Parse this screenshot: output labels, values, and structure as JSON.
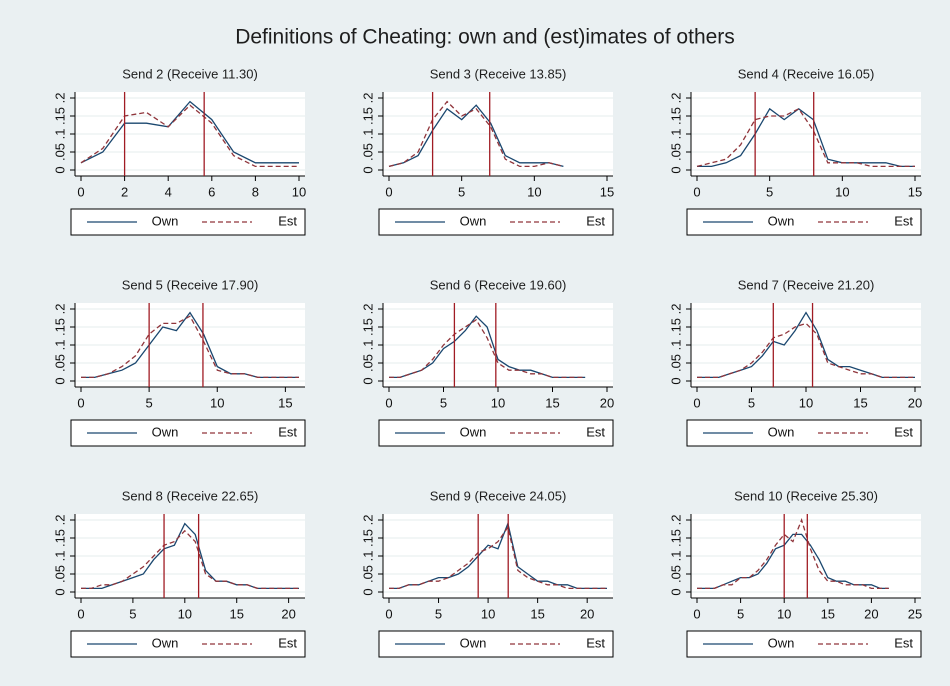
{
  "title": "Definitions of Cheating: own and (est)imates of others",
  "chart_data": [
    {
      "type": "line",
      "title": "Send 2 (Receive 11.30)",
      "x": [
        0,
        1,
        2,
        3,
        4,
        5,
        6,
        7,
        8,
        9,
        10
      ],
      "xlim": [
        0,
        10
      ],
      "xticks": [
        0,
        2,
        4,
        6,
        8,
        10
      ],
      "ylim": [
        0,
        0.2
      ],
      "yticks": [
        0,
        {
          "value": 0.05,
          "label": ".05"
        },
        {
          "value": 0.1,
          "label": ".1"
        },
        {
          "value": 0.15,
          "label": ".15"
        },
        {
          "value": 0.2,
          "label": ".2"
        }
      ],
      "grid": true,
      "vlines": [
        2,
        5.65
      ],
      "vline_color": "#a01c24",
      "series": [
        {
          "name": "Own",
          "color": "#1a476f",
          "dash": false,
          "values": [
            0.02,
            0.05,
            0.13,
            0.13,
            0.12,
            0.19,
            0.14,
            0.05,
            0.02,
            0.02,
            0.02
          ]
        },
        {
          "name": "Est",
          "color": "#90353b",
          "dash": true,
          "values": [
            0.02,
            0.06,
            0.15,
            0.16,
            0.12,
            0.18,
            0.13,
            0.04,
            0.01,
            0.01,
            0.01
          ]
        }
      ]
    },
    {
      "type": "line",
      "title": "Send 3 (Receive 13.85)",
      "x": [
        0,
        1,
        2,
        3,
        4,
        5,
        6,
        7,
        8,
        9,
        10,
        11,
        12
      ],
      "xlim": [
        0,
        15
      ],
      "xticks": [
        0,
        5,
        10,
        15
      ],
      "ylim": [
        0,
        0.2
      ],
      "yticks": [
        0,
        {
          "value": 0.05,
          "label": ".05"
        },
        {
          "value": 0.1,
          "label": ".1"
        },
        {
          "value": 0.15,
          "label": ".15"
        },
        {
          "value": 0.2,
          "label": ".2"
        }
      ],
      "grid": true,
      "vlines": [
        3,
        6.93
      ],
      "vline_color": "#a01c24",
      "series": [
        {
          "name": "Own",
          "color": "#1a476f",
          "dash": false,
          "values": [
            0.01,
            0.02,
            0.04,
            0.11,
            0.17,
            0.14,
            0.18,
            0.13,
            0.04,
            0.02,
            0.02,
            0.02,
            0.01
          ]
        },
        {
          "name": "Est",
          "color": "#90353b",
          "dash": true,
          "values": [
            0.01,
            0.02,
            0.05,
            0.14,
            0.19,
            0.15,
            0.17,
            0.12,
            0.03,
            0.01,
            0.01,
            0.02,
            0.01
          ]
        }
      ]
    },
    {
      "type": "line",
      "title": "Send 4 (Receive 16.05)",
      "x": [
        0,
        1,
        2,
        3,
        4,
        5,
        6,
        7,
        8,
        9,
        10,
        11,
        12,
        13,
        14,
        15
      ],
      "xlim": [
        0,
        15
      ],
      "xticks": [
        0,
        5,
        10,
        15
      ],
      "ylim": [
        0,
        0.2
      ],
      "yticks": [
        0,
        {
          "value": 0.05,
          "label": ".05"
        },
        {
          "value": 0.1,
          "label": ".1"
        },
        {
          "value": 0.15,
          "label": ".15"
        },
        {
          "value": 0.2,
          "label": ".2"
        }
      ],
      "grid": true,
      "vlines": [
        4,
        8.03
      ],
      "vline_color": "#a01c24",
      "series": [
        {
          "name": "Own",
          "color": "#1a476f",
          "dash": false,
          "values": [
            0.01,
            0.01,
            0.02,
            0.04,
            0.1,
            0.17,
            0.14,
            0.17,
            0.14,
            0.03,
            0.02,
            0.02,
            0.02,
            0.02,
            0.01,
            0.01
          ]
        },
        {
          "name": "Est",
          "color": "#90353b",
          "dash": true,
          "values": [
            0.01,
            0.02,
            0.03,
            0.07,
            0.14,
            0.15,
            0.15,
            0.17,
            0.11,
            0.02,
            0.02,
            0.02,
            0.01,
            0.01,
            0.01,
            0.01
          ]
        }
      ]
    },
    {
      "type": "line",
      "title": "Send 5 (Receive 17.90)",
      "x": [
        0,
        1,
        2,
        3,
        4,
        5,
        6,
        7,
        8,
        9,
        10,
        11,
        12,
        13,
        14,
        15,
        16
      ],
      "xlim": [
        0,
        16
      ],
      "xticks": [
        0,
        5,
        10,
        15
      ],
      "ylim": [
        0,
        0.2
      ],
      "yticks": [
        0,
        {
          "value": 0.05,
          "label": ".05"
        },
        {
          "value": 0.1,
          "label": ".1"
        },
        {
          "value": 0.15,
          "label": ".15"
        },
        {
          "value": 0.2,
          "label": ".2"
        }
      ],
      "grid": true,
      "vlines": [
        5,
        8.95
      ],
      "vline_color": "#a01c24",
      "series": [
        {
          "name": "Own",
          "color": "#1a476f",
          "dash": false,
          "values": [
            0.01,
            0.01,
            0.02,
            0.03,
            0.05,
            0.1,
            0.15,
            0.14,
            0.19,
            0.13,
            0.04,
            0.02,
            0.02,
            0.01,
            0.01,
            0.01,
            0.01
          ]
        },
        {
          "name": "Est",
          "color": "#90353b",
          "dash": true,
          "values": [
            0.01,
            0.01,
            0.02,
            0.04,
            0.07,
            0.13,
            0.16,
            0.16,
            0.18,
            0.11,
            0.03,
            0.02,
            0.02,
            0.01,
            0.01,
            0.01,
            0.01
          ]
        }
      ]
    },
    {
      "type": "line",
      "title": "Send 6 (Receive 19.60)",
      "x": [
        0,
        1,
        2,
        3,
        4,
        5,
        6,
        7,
        8,
        9,
        10,
        11,
        12,
        13,
        14,
        15,
        16,
        17,
        18
      ],
      "xlim": [
        0,
        20
      ],
      "xticks": [
        0,
        5,
        10,
        15,
        20
      ],
      "ylim": [
        0,
        0.2
      ],
      "yticks": [
        0,
        {
          "value": 0.05,
          "label": ".05"
        },
        {
          "value": 0.1,
          "label": ".1"
        },
        {
          "value": 0.15,
          "label": ".15"
        },
        {
          "value": 0.2,
          "label": ".2"
        }
      ],
      "grid": true,
      "vlines": [
        6,
        9.8
      ],
      "vline_color": "#a01c24",
      "series": [
        {
          "name": "Own",
          "color": "#1a476f",
          "dash": false,
          "values": [
            0.01,
            0.01,
            0.02,
            0.03,
            0.05,
            0.09,
            0.11,
            0.14,
            0.18,
            0.15,
            0.06,
            0.04,
            0.03,
            0.03,
            0.02,
            0.01,
            0.01,
            0.01,
            0.01
          ]
        },
        {
          "name": "Est",
          "color": "#90353b",
          "dash": true,
          "values": [
            0.01,
            0.01,
            0.02,
            0.03,
            0.06,
            0.1,
            0.13,
            0.15,
            0.17,
            0.12,
            0.05,
            0.03,
            0.03,
            0.02,
            0.02,
            0.01,
            0.01,
            0.01,
            0.01
          ]
        }
      ]
    },
    {
      "type": "line",
      "title": "Send 7 (Receive 21.20)",
      "x": [
        0,
        1,
        2,
        3,
        4,
        5,
        6,
        7,
        8,
        9,
        10,
        11,
        12,
        13,
        14,
        15,
        16,
        17,
        18,
        19,
        20
      ],
      "xlim": [
        0,
        20
      ],
      "xticks": [
        0,
        5,
        10,
        15,
        20
      ],
      "ylim": [
        0,
        0.2
      ],
      "yticks": [
        0,
        {
          "value": 0.05,
          "label": ".05"
        },
        {
          "value": 0.1,
          "label": ".1"
        },
        {
          "value": 0.15,
          "label": ".15"
        },
        {
          "value": 0.2,
          "label": ".2"
        }
      ],
      "grid": true,
      "vlines": [
        7,
        10.6
      ],
      "vline_color": "#a01c24",
      "series": [
        {
          "name": "Own",
          "color": "#1a476f",
          "dash": false,
          "values": [
            0.01,
            0.01,
            0.01,
            0.02,
            0.03,
            0.04,
            0.07,
            0.11,
            0.1,
            0.14,
            0.19,
            0.14,
            0.06,
            0.04,
            0.04,
            0.03,
            0.02,
            0.01,
            0.01,
            0.01,
            0.01
          ]
        },
        {
          "name": "Est",
          "color": "#90353b",
          "dash": true,
          "values": [
            0.01,
            0.01,
            0.01,
            0.02,
            0.03,
            0.05,
            0.08,
            0.12,
            0.13,
            0.15,
            0.16,
            0.13,
            0.05,
            0.04,
            0.03,
            0.02,
            0.02,
            0.01,
            0.01,
            0.01,
            0.01
          ]
        }
      ]
    },
    {
      "type": "line",
      "title": "Send 8 (Receive 22.65)",
      "x": [
        0,
        1,
        2,
        3,
        4,
        5,
        6,
        7,
        8,
        9,
        10,
        11,
        12,
        13,
        14,
        15,
        16,
        17,
        18,
        19,
        20,
        21
      ],
      "xlim": [
        0,
        21
      ],
      "xticks": [
        0,
        5,
        10,
        15,
        20
      ],
      "ylim": [
        0,
        0.2
      ],
      "yticks": [
        0,
        {
          "value": 0.05,
          "label": ".05"
        },
        {
          "value": 0.1,
          "label": ".1"
        },
        {
          "value": 0.15,
          "label": ".15"
        },
        {
          "value": 0.2,
          "label": ".2"
        }
      ],
      "grid": true,
      "vlines": [
        8,
        11.33
      ],
      "vline_color": "#a01c24",
      "series": [
        {
          "name": "Own",
          "color": "#1a476f",
          "dash": false,
          "values": [
            0.01,
            0.01,
            0.01,
            0.02,
            0.03,
            0.04,
            0.05,
            0.09,
            0.12,
            0.13,
            0.19,
            0.16,
            0.06,
            0.03,
            0.03,
            0.02,
            0.02,
            0.01,
            0.01,
            0.01,
            0.01,
            0.01
          ]
        },
        {
          "name": "Est",
          "color": "#90353b",
          "dash": true,
          "values": [
            0.01,
            0.01,
            0.02,
            0.02,
            0.03,
            0.05,
            0.07,
            0.1,
            0.13,
            0.14,
            0.17,
            0.14,
            0.05,
            0.03,
            0.03,
            0.02,
            0.02,
            0.01,
            0.01,
            0.01,
            0.01,
            0.01
          ]
        }
      ]
    },
    {
      "type": "line",
      "title": "Send 9 (Receive 24.05)",
      "x": [
        0,
        1,
        2,
        3,
        4,
        5,
        6,
        7,
        8,
        9,
        10,
        11,
        12,
        13,
        14,
        15,
        16,
        17,
        18,
        19,
        20,
        21,
        22
      ],
      "xlim": [
        0,
        22
      ],
      "xticks": [
        0,
        5,
        10,
        15,
        20
      ],
      "ylim": [
        0,
        0.2
      ],
      "yticks": [
        0,
        {
          "value": 0.05,
          "label": ".05"
        },
        {
          "value": 0.1,
          "label": ".1"
        },
        {
          "value": 0.15,
          "label": ".15"
        },
        {
          "value": 0.2,
          "label": ".2"
        }
      ],
      "grid": true,
      "vlines": [
        9,
        12.03
      ],
      "vline_color": "#a01c24",
      "series": [
        {
          "name": "Own",
          "color": "#1a476f",
          "dash": false,
          "values": [
            0.01,
            0.01,
            0.02,
            0.02,
            0.03,
            0.04,
            0.04,
            0.05,
            0.07,
            0.1,
            0.13,
            0.12,
            0.19,
            0.07,
            0.05,
            0.03,
            0.03,
            0.02,
            0.02,
            0.01,
            0.01,
            0.01,
            0.01
          ]
        },
        {
          "name": "Est",
          "color": "#90353b",
          "dash": true,
          "values": [
            0.01,
            0.01,
            0.02,
            0.02,
            0.03,
            0.03,
            0.04,
            0.06,
            0.08,
            0.11,
            0.12,
            0.14,
            0.18,
            0.06,
            0.04,
            0.03,
            0.02,
            0.02,
            0.01,
            0.01,
            0.01,
            0.01,
            0.01
          ]
        }
      ]
    },
    {
      "type": "line",
      "title": "Send 10 (Receive 25.30)",
      "x": [
        0,
        1,
        2,
        3,
        4,
        5,
        6,
        7,
        8,
        9,
        10,
        11,
        12,
        13,
        14,
        15,
        16,
        17,
        18,
        19,
        20,
        21,
        22
      ],
      "xlim": [
        0,
        25
      ],
      "xticks": [
        0,
        5,
        10,
        15,
        20,
        25
      ],
      "ylim": [
        0,
        0.2
      ],
      "yticks": [
        0,
        {
          "value": 0.05,
          "label": ".05"
        },
        {
          "value": 0.1,
          "label": ".1"
        },
        {
          "value": 0.15,
          "label": ".15"
        },
        {
          "value": 0.2,
          "label": ".2"
        }
      ],
      "grid": true,
      "vlines": [
        10,
        12.65
      ],
      "vline_color": "#a01c24",
      "series": [
        {
          "name": "Own",
          "color": "#1a476f",
          "dash": false,
          "values": [
            0.01,
            0.01,
            0.01,
            0.02,
            0.03,
            0.04,
            0.04,
            0.05,
            0.08,
            0.12,
            0.13,
            0.16,
            0.16,
            0.13,
            0.09,
            0.04,
            0.03,
            0.03,
            0.02,
            0.02,
            0.02,
            0.01,
            0.01
          ]
        },
        {
          "name": "Est",
          "color": "#90353b",
          "dash": true,
          "values": [
            0.01,
            0.01,
            0.01,
            0.02,
            0.02,
            0.04,
            0.04,
            0.06,
            0.09,
            0.13,
            0.16,
            0.14,
            0.2,
            0.12,
            0.06,
            0.03,
            0.03,
            0.02,
            0.02,
            0.02,
            0.01,
            0.01,
            0.01
          ]
        }
      ]
    }
  ]
}
